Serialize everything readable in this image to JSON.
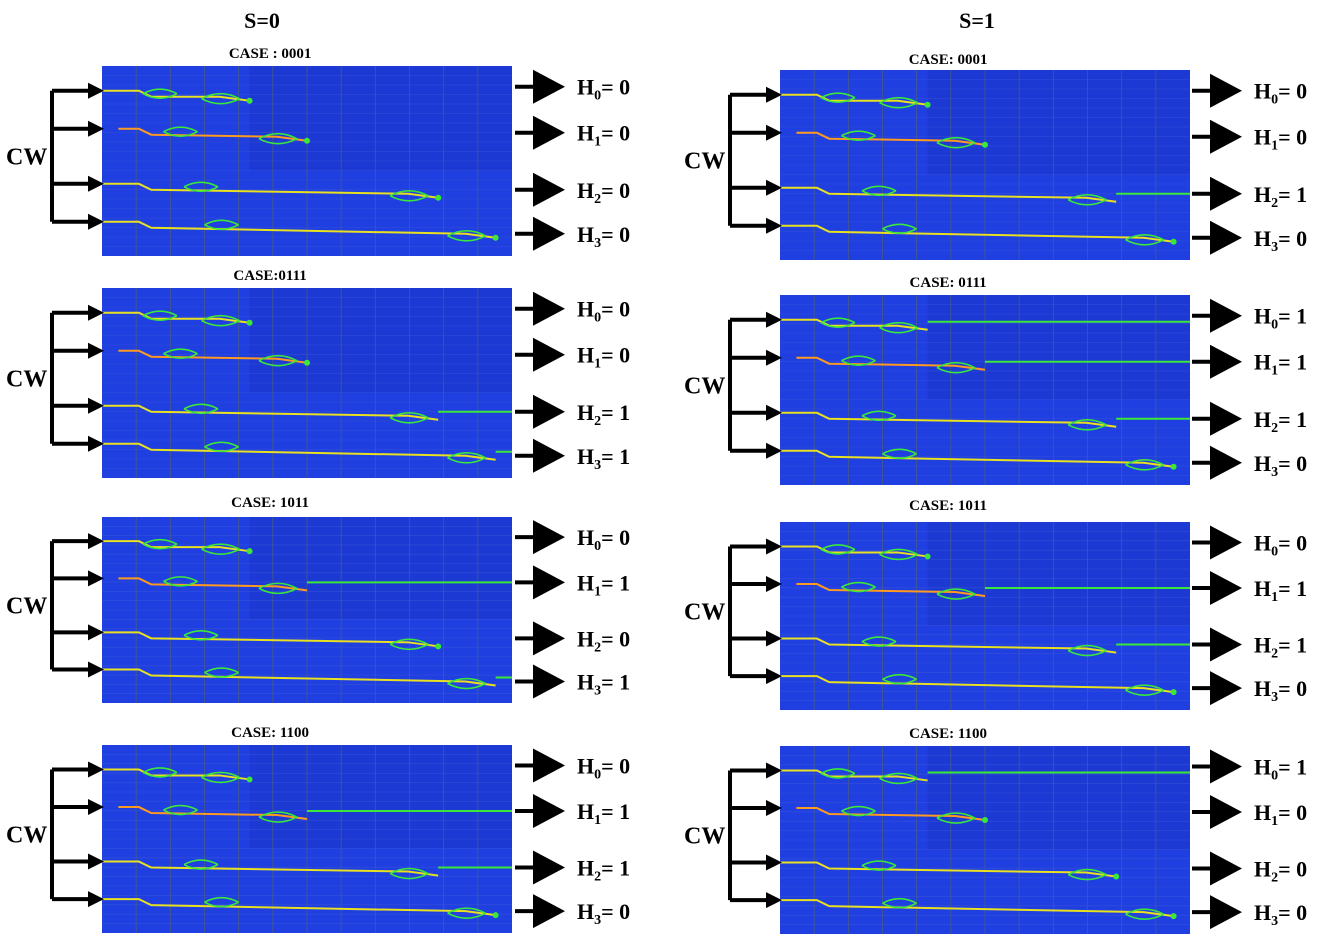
{
  "columns": [
    {
      "title": "S=0",
      "panels": [
        {
          "case": "CASE : 0001",
          "source": "CW",
          "outputs": [
            {
              "name": "H",
              "index": "0",
              "eq": "= ",
              "value": "0"
            },
            {
              "name": "H",
              "index": "1",
              "eq": "= ",
              "value": "0"
            },
            {
              "name": "H",
              "index": "2",
              "eq": "= ",
              "value": "0"
            },
            {
              "name": "H",
              "index": "3",
              "eq": "= ",
              "value": "0"
            }
          ],
          "lit": [
            false,
            false,
            false,
            false
          ]
        },
        {
          "case": "CASE:0111",
          "source": "CW",
          "outputs": [
            {
              "name": "H",
              "index": "0",
              "eq": "=  ",
              "value": "0"
            },
            {
              "name": "H",
              "index": "1",
              "eq": "= ",
              "value": "0"
            },
            {
              "name": "H",
              "index": "2",
              "eq": "= ",
              "value": "1"
            },
            {
              "name": "H",
              "index": "3",
              "eq": "= ",
              "value": "1"
            }
          ],
          "lit": [
            false,
            false,
            true,
            true
          ]
        },
        {
          "case": "CASE: 1011",
          "source": "CW",
          "outputs": [
            {
              "name": "H",
              "index": "0",
              "eq": "=  ",
              "value": "0"
            },
            {
              "name": "H",
              "index": "1",
              "eq": "= ",
              "value": "1"
            },
            {
              "name": "H",
              "index": "2",
              "eq": "= ",
              "value": "0"
            },
            {
              "name": "H",
              "index": "3",
              "eq": "= ",
              "value": "1"
            }
          ],
          "lit": [
            false,
            true,
            false,
            true
          ]
        },
        {
          "case": "CASE: 1100",
          "source": "CW",
          "outputs": [
            {
              "name": "H",
              "index": "0",
              "eq": "=  ",
              "value": "0"
            },
            {
              "name": "H",
              "index": "1",
              "eq": "= ",
              "value": "1"
            },
            {
              "name": "H",
              "index": "2",
              "eq": "= ",
              "value": "1"
            },
            {
              "name": "H",
              "index": "3",
              "eq": "= ",
              "value": "0"
            }
          ],
          "lit": [
            false,
            true,
            true,
            false
          ]
        }
      ]
    },
    {
      "title": "S=1",
      "panels": [
        {
          "case": "CASE: 0001",
          "source": "CW",
          "outputs": [
            {
              "name": "H",
              "index": "0",
              "eq": "= ",
              "value": "0"
            },
            {
              "name": "H",
              "index": "1",
              "eq": "= ",
              "value": "0"
            },
            {
              "name": "H",
              "index": "2",
              "eq": "= ",
              "value": "1"
            },
            {
              "name": "H",
              "index": "3",
              "eq": "= ",
              "value": "0"
            }
          ],
          "lit": [
            false,
            false,
            true,
            false
          ]
        },
        {
          "case": "CASE: 0111",
          "source": "CW",
          "outputs": [
            {
              "name": "H",
              "index": "0",
              "eq": "= ",
              "value": "1"
            },
            {
              "name": "H",
              "index": "1",
              "eq": "= ",
              "value": "1"
            },
            {
              "name": "H",
              "index": "2",
              "eq": "= ",
              "value": "1"
            },
            {
              "name": "H",
              "index": "3",
              "eq": "= ",
              "value": "0"
            }
          ],
          "lit": [
            true,
            true,
            true,
            false
          ]
        },
        {
          "case": "CASE: 1011",
          "source": "CW",
          "outputs": [
            {
              "name": "H",
              "index": "0",
              "eq": "= ",
              "value": "0"
            },
            {
              "name": "H",
              "index": "1",
              "eq": "= ",
              "value": "1"
            },
            {
              "name": "H",
              "index": "2",
              "eq": "= ",
              "value": "1"
            },
            {
              "name": "H",
              "index": "3",
              "eq": "= ",
              "value": "0"
            }
          ],
          "lit": [
            false,
            true,
            true,
            false
          ]
        },
        {
          "case": "CASE: 1100",
          "source": "CW",
          "outputs": [
            {
              "name": "H",
              "index": "0",
              "eq": "= ",
              "value": "1"
            },
            {
              "name": "H",
              "index": "1",
              "eq": "= ",
              "value": "0"
            },
            {
              "name": "H",
              "index": "2",
              "eq": "= ",
              "value": "0"
            },
            {
              "name": "H",
              "index": "3",
              "eq": "= ",
              "value": "0"
            }
          ],
          "lit": [
            true,
            false,
            false,
            false
          ]
        }
      ]
    }
  ],
  "colors": {
    "background": "#1f3fe0",
    "grid": "#5a6a5a",
    "waveguide": "#e8e020",
    "lit_output": "#3ae83a",
    "input_hot": "#ff9a20",
    "arrow": "#000000"
  }
}
